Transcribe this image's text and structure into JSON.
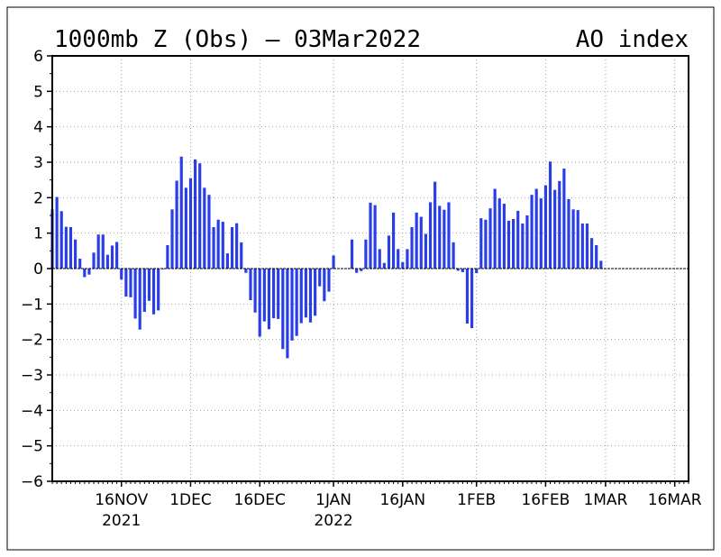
{
  "chart_data": {
    "type": "bar",
    "title": "1000mb Z (Obs) – 03Mar2022",
    "subtitle": "AO index",
    "xlabel": "",
    "ylabel": "",
    "ylim": [
      -6,
      6
    ],
    "yticks": [
      6,
      5,
      4,
      3,
      2,
      1,
      0,
      -1,
      -2,
      -3,
      -4,
      -5,
      -6
    ],
    "ytick_labels": [
      "6",
      "5",
      "4",
      "3",
      "2",
      "1",
      "0",
      "−1",
      "−2",
      "−3",
      "−4",
      "−5",
      "−6"
    ],
    "x_start": "2021-11-01",
    "x_end": "2022-03-19",
    "xticks": [
      {
        "date": "2021-11-16",
        "label": "16NOV",
        "year": "2021"
      },
      {
        "date": "2021-12-01",
        "label": "1DEC",
        "year": ""
      },
      {
        "date": "2021-12-16",
        "label": "16DEC",
        "year": ""
      },
      {
        "date": "2022-01-01",
        "label": "1JAN",
        "year": "2022"
      },
      {
        "date": "2022-01-16",
        "label": "16JAN",
        "year": ""
      },
      {
        "date": "2022-02-01",
        "label": "1FEB",
        "year": ""
      },
      {
        "date": "2022-02-16",
        "label": "16FEB",
        "year": ""
      },
      {
        "date": "2022-03-01",
        "label": "1MAR",
        "year": ""
      },
      {
        "date": "2022-03-16",
        "label": "16MAR",
        "year": ""
      }
    ],
    "grid": true,
    "bar_color": "#2a3ee8",
    "series": [
      {
        "start_date": "2021-11-01",
        "values": [
          1.67,
          2.02,
          1.62,
          1.18,
          1.17,
          0.82,
          0.28,
          -0.24,
          -0.17,
          0.45,
          0.96,
          0.96,
          0.39,
          0.65,
          0.75,
          -0.31,
          -0.79,
          -0.81,
          -1.41,
          -1.72,
          -1.22,
          -0.91,
          -1.29,
          -1.18,
          -0.01,
          0.66,
          1.67,
          2.48,
          3.16,
          2.28,
          2.55,
          3.08,
          2.97,
          2.28,
          2.08,
          1.17,
          1.38,
          1.32,
          0.43,
          1.17,
          1.28,
          0.74,
          -0.12,
          -0.89,
          -1.24,
          -1.92,
          -1.49,
          -1.71,
          -1.4,
          -1.42,
          -2.27,
          -2.53,
          -2.03,
          -1.9,
          -1.54,
          -1.38,
          -1.52,
          -1.33,
          -0.5,
          -0.92,
          -0.65,
          0.37,
          null,
          null,
          null,
          0.82,
          -0.12,
          -0.07,
          0.82,
          1.86,
          1.79,
          0.55,
          0.16,
          0.93,
          1.58,
          0.55,
          0.18,
          0.55,
          1.17,
          1.58,
          1.46,
          0.98,
          1.87,
          2.45,
          1.77,
          1.66,
          1.87,
          0.74,
          -0.06,
          -0.1,
          -1.55,
          -1.68,
          -0.13,
          1.42,
          1.38,
          1.7,
          2.25,
          1.98,
          1.83,
          1.35,
          1.4,
          1.63,
          1.27,
          1.5,
          2.08,
          2.25,
          1.98,
          2.35,
          3.02,
          2.22,
          2.47,
          2.82,
          1.96,
          1.67,
          1.65,
          1.27,
          1.27,
          0.86,
          0.66,
          0.22
        ]
      }
    ]
  }
}
